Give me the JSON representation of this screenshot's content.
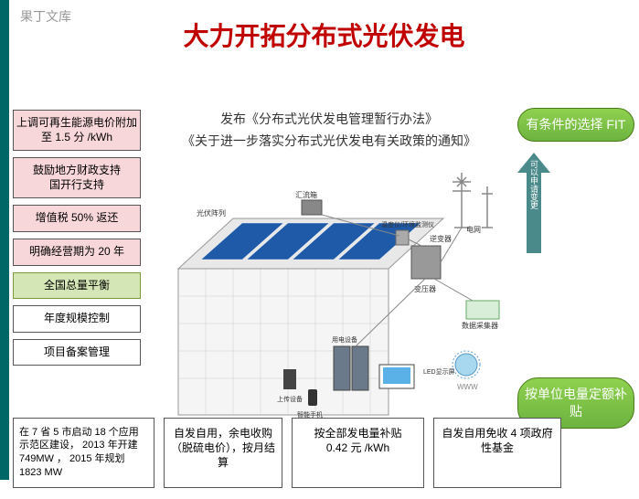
{
  "watermark": "果丁文库",
  "title": "大力开拓分布式光伏发电",
  "left_boxes": [
    {
      "text": "上调可再生能源电价附加至 1.5 分 /kWh",
      "cls": "pink"
    },
    {
      "text": "鼓励地方财政支持\n国开行支持",
      "cls": "pink"
    },
    {
      "text": "增值税 50% 返还",
      "cls": "pink"
    },
    {
      "text": "明确经营期为 20 年",
      "cls": "pink"
    },
    {
      "text": "全国总量平衡",
      "cls": "green"
    },
    {
      "text": "年度规模控制",
      "cls": "plain"
    },
    {
      "text": "项目备案管理",
      "cls": "plain"
    }
  ],
  "center_policies": [
    "发布《分布式光伏发电管理暂行办法》",
    "《关于进一步落实分布式光伏发电有关政策的通知》"
  ],
  "diagram_labels": {
    "pv_array": "光伏阵列",
    "combiner": "汇流箱",
    "monitor": "温度仪/环境监测仪",
    "inverter": "逆变器",
    "transformer": "变压器",
    "grid": "电网",
    "equipment": "用电设备",
    "upstream": "上传设备",
    "collector": "数据采集器",
    "led": "LED显示屏",
    "phone": "智能手机",
    "web": "WWW"
  },
  "right_badges": [
    {
      "text": "有条件的选择 FIT",
      "cls": ""
    },
    {
      "text": "按单位电量定额补贴",
      "cls": "lower"
    }
  ],
  "arrow_label": "可以申请变更",
  "bottom": [
    {
      "text": "在 7 省 5 市启动 18 个应用示范区建设， 2013 年开建 749MW ， 2015 年规划 1823 MW",
      "cls": "w1"
    },
    {
      "text": "自发自用，余电收购（脱硫电价），按月结算",
      "cls": "w2"
    },
    {
      "text": "按全部发电量补贴\n0.42 元 /kWh",
      "cls": "w3"
    },
    {
      "text": "自发自用免收 4 项政府性基金",
      "cls": "w4"
    }
  ],
  "colors": {
    "badge_top": "#8fd14f",
    "badge_bot": "#6db33f",
    "arrow": "#4a8a8a",
    "title": "#c00000"
  }
}
